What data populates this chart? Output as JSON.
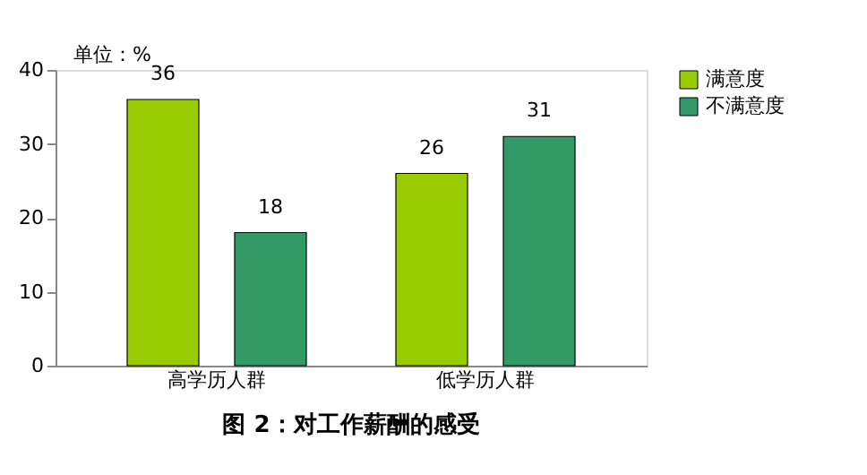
{
  "chart_data": {
    "type": "bar",
    "title": "图 2：对工作薪酬的感受",
    "categories": [
      "高学历人群",
      "低学历人群"
    ],
    "series": [
      {
        "name": "满意度",
        "color": "#99cc00",
        "values": [
          36,
          26
        ]
      },
      {
        "name": "不满意度",
        "color": "#339966",
        "values": [
          18,
          31
        ]
      }
    ],
    "ylim": [
      0,
      40
    ],
    "yticks": [
      0,
      10,
      20,
      30,
      40
    ],
    "annotations": [
      "单位：%"
    ],
    "data_labels": true,
    "legend": "top right",
    "grid": false
  }
}
